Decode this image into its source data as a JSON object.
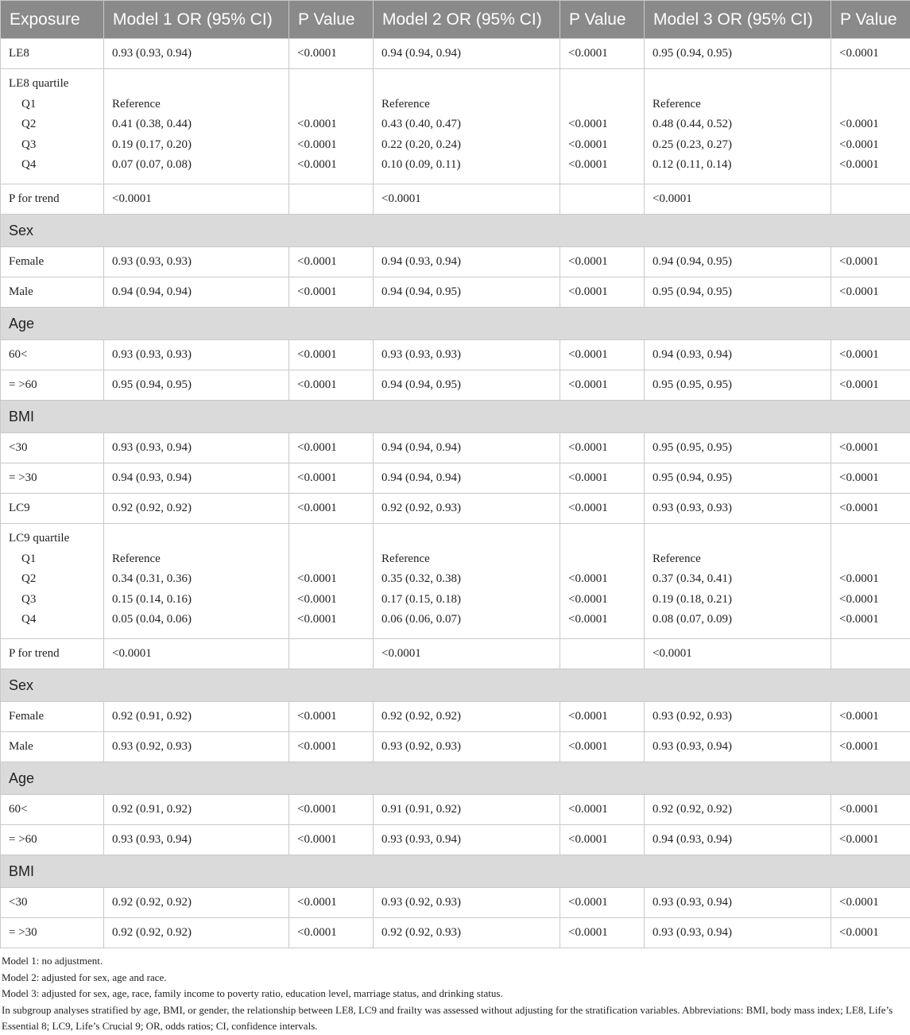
{
  "table": {
    "headers": [
      "Exposure",
      "Model 1 OR (95% CI)",
      "P Value",
      "Model 2 OR (95% CI)",
      "P Value",
      "Model 3 OR (95% CI)",
      "P Value"
    ],
    "rows": [
      {
        "type": "single",
        "cells": [
          "LE8",
          "0.93 (0.93, 0.94)",
          "<0.0001",
          "0.94 (0.94, 0.94)",
          "<0.0001",
          "0.95 (0.94, 0.95)",
          "<0.0001"
        ]
      },
      {
        "type": "group",
        "title": "LE8 quartile",
        "sublabels": [
          "Q1",
          "Q2",
          "Q3",
          "Q4"
        ],
        "cols": [
          [
            "Reference",
            "0.41 (0.38, 0.44)",
            "0.19 (0.17, 0.20)",
            "0.07 (0.07, 0.08)"
          ],
          [
            "",
            "<0.0001",
            "<0.0001",
            "<0.0001"
          ],
          [
            "Reference",
            "0.43 (0.40, 0.47)",
            "0.22 (0.20, 0.24)",
            "0.10 (0.09, 0.11)"
          ],
          [
            "",
            "<0.0001",
            "<0.0001",
            "<0.0001"
          ],
          [
            "Reference",
            "0.48 (0.44, 0.52)",
            "0.25 (0.23, 0.27)",
            "0.12 (0.11, 0.14)"
          ],
          [
            "",
            "<0.0001",
            "<0.0001",
            "<0.0001"
          ]
        ]
      },
      {
        "type": "single",
        "cells": [
          "P for trend",
          "<0.0001",
          "",
          "<0.0001",
          "",
          "<0.0001",
          ""
        ]
      },
      {
        "type": "section",
        "label": "Sex"
      },
      {
        "type": "single",
        "cells": [
          "Female",
          "0.93 (0.93, 0.93)",
          "<0.0001",
          "0.94 (0.93, 0.94)",
          "<0.0001",
          "0.94 (0.94, 0.95)",
          "<0.0001"
        ]
      },
      {
        "type": "single",
        "cells": [
          "Male",
          "0.94 (0.94, 0.94)",
          "<0.0001",
          "0.94 (0.94, 0.95)",
          "<0.0001",
          "0.95 (0.94, 0.95)",
          "<0.0001"
        ]
      },
      {
        "type": "section",
        "label": "Age"
      },
      {
        "type": "single",
        "cells": [
          "60<",
          "0.93 (0.93, 0.93)",
          "<0.0001",
          "0.93 (0.93, 0.93)",
          "<0.0001",
          "0.94 (0.93, 0.94)",
          "<0.0001"
        ]
      },
      {
        "type": "single",
        "cells": [
          "= >60",
          "0.95 (0.94, 0.95)",
          "<0.0001",
          "0.94 (0.94, 0.95)",
          "<0.0001",
          "0.95 (0.95, 0.95)",
          "<0.0001"
        ]
      },
      {
        "type": "section",
        "label": "BMI"
      },
      {
        "type": "single",
        "cells": [
          "<30",
          "0.93 (0.93, 0.94)",
          "<0.0001",
          "0.94 (0.94, 0.94)",
          "<0.0001",
          "0.95 (0.95, 0.95)",
          "<0.0001"
        ]
      },
      {
        "type": "single",
        "cells": [
          "= >30",
          "0.94 (0.93, 0.94)",
          "<0.0001",
          "0.94 (0.94, 0.94)",
          "<0.0001",
          "0.95 (0.94, 0.95)",
          "<0.0001"
        ]
      },
      {
        "type": "single",
        "cells": [
          "LC9",
          "0.92 (0.92, 0.92)",
          "<0.0001",
          "0.92 (0.92, 0.93)",
          "<0.0001",
          "0.93 (0.93, 0.93)",
          "<0.0001"
        ]
      },
      {
        "type": "group",
        "title": "LC9 quartile",
        "sublabels": [
          "Q1",
          "Q2",
          "Q3",
          "Q4"
        ],
        "cols": [
          [
            "Reference",
            "0.34 (0.31, 0.36)",
            "0.15 (0.14, 0.16)",
            "0.05 (0.04, 0.06)"
          ],
          [
            "",
            "<0.0001",
            "<0.0001",
            "<0.0001"
          ],
          [
            "Reference",
            "0.35 (0.32, 0.38)",
            "0.17 (0.15, 0.18)",
            "0.06 (0.06, 0.07)"
          ],
          [
            "",
            "<0.0001",
            "<0.0001",
            "<0.0001"
          ],
          [
            "Reference",
            "0.37 (0.34, 0.41)",
            "0.19 (0.18, 0.21)",
            "0.08 (0.07, 0.09)"
          ],
          [
            "",
            "<0.0001",
            "<0.0001",
            "<0.0001"
          ]
        ]
      },
      {
        "type": "single",
        "cells": [
          "P for trend",
          "<0.0001",
          "",
          "<0.0001",
          "",
          "<0.0001",
          ""
        ]
      },
      {
        "type": "section",
        "label": "Sex"
      },
      {
        "type": "single",
        "cells": [
          "Female",
          "0.92 (0.91, 0.92)",
          "<0.0001",
          "0.92 (0.92, 0.92)",
          "<0.0001",
          "0.93 (0.92, 0.93)",
          "<0.0001"
        ]
      },
      {
        "type": "single",
        "cells": [
          "Male",
          "0.93 (0.92, 0.93)",
          "<0.0001",
          "0.93 (0.92, 0.93)",
          "<0.0001",
          "0.93 (0.93, 0.94)",
          "<0.0001"
        ]
      },
      {
        "type": "section",
        "label": "Age"
      },
      {
        "type": "single",
        "cells": [
          "60<",
          "0.92 (0.91, 0.92)",
          "<0.0001",
          "0.91 (0.91, 0.92)",
          "<0.0001",
          "0.92 (0.92, 0.92)",
          "<0.0001"
        ]
      },
      {
        "type": "single",
        "cells": [
          "= >60",
          "0.93 (0.93, 0.94)",
          "<0.0001",
          "0.93 (0.93, 0.94)",
          "<0.0001",
          "0.94 (0.93, 0.94)",
          "<0.0001"
        ]
      },
      {
        "type": "section",
        "label": "BMI"
      },
      {
        "type": "single",
        "cells": [
          "<30",
          "0.92 (0.92, 0.92)",
          "<0.0001",
          "0.93 (0.92, 0.93)",
          "<0.0001",
          "0.93 (0.93, 0.94)",
          "<0.0001"
        ]
      },
      {
        "type": "single",
        "cells": [
          "= >30",
          "0.92 (0.92, 0.92)",
          "<0.0001",
          "0.92 (0.92, 0.93)",
          "<0.0001",
          "0.93 (0.93, 0.94)",
          "<0.0001"
        ]
      }
    ]
  },
  "footnotes": [
    "Model 1: no adjustment.",
    "Model 2: adjusted for sex, age and race.",
    "Model 3: adjusted for sex, age, race, family income to poverty ratio, education level, marriage status, and drinking status.",
    "In subgroup analyses stratified by age, BMI, or gender, the relationship between LE8, LC9 and frailty was assessed without adjusting for the stratification variables. Abbreviations: BMI, body mass index; LE8, Life’s Essential 8; LC9, Life’s Crucial 9; OR, odds ratios; CI, confidence intervals."
  ]
}
